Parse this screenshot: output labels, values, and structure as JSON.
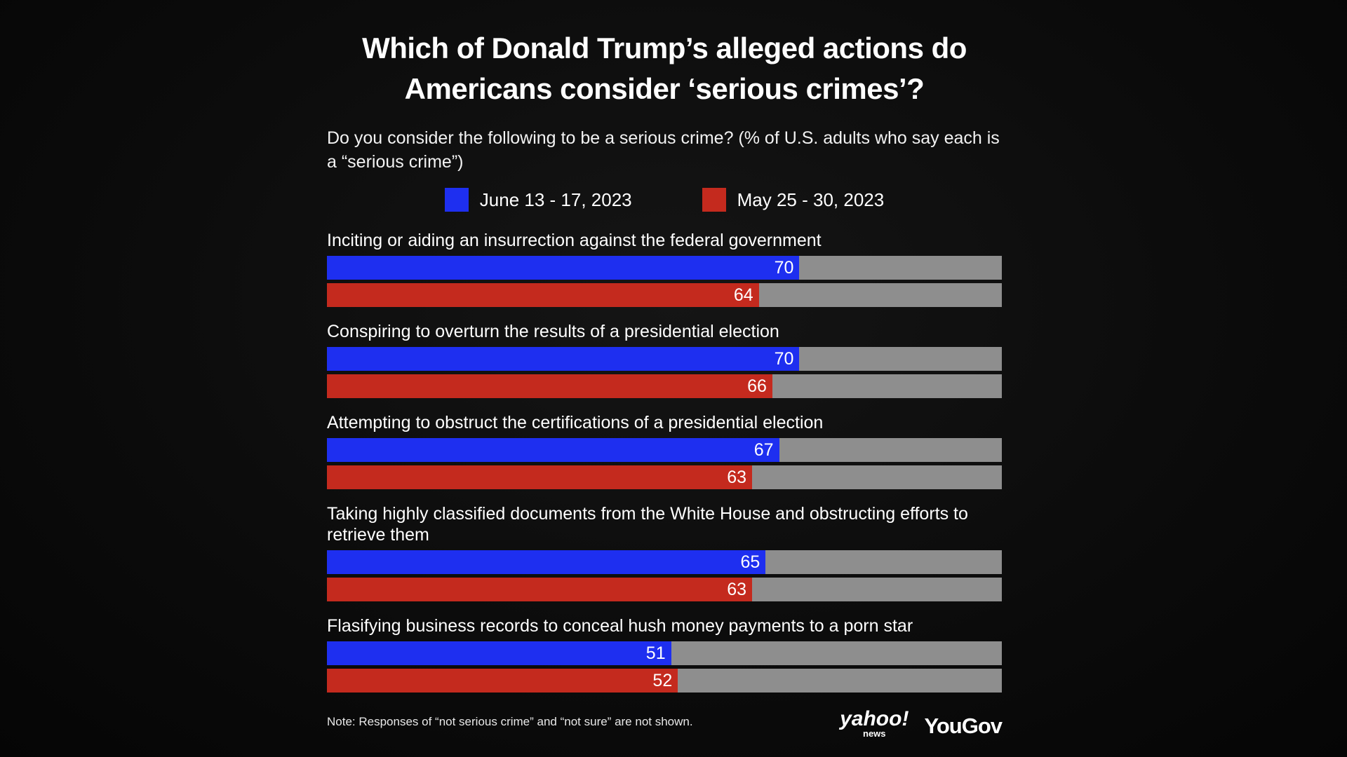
{
  "title": "Which of Donald Trump’s alleged actions do Americans consider ‘serious crimes’?",
  "subtitle": "Do you consider the following to be a serious crime? (% of U.S. adults who say each is a “serious crime”)",
  "note": "Note: Responses of “not serious crime” and “not sure” are not shown.",
  "logos": {
    "yahoo": "yahoo!",
    "yahoo_sub": "news",
    "yougov": "YouGov"
  },
  "colors": {
    "june": "#1e2ff0",
    "may": "#c42a1e",
    "track": "#8e8e8e"
  },
  "chart_data": {
    "type": "bar",
    "orientation": "horizontal",
    "xlim": [
      0,
      100
    ],
    "legend_position": "top-center",
    "categories": [
      "Inciting or aiding an insurrection against the federal government",
      "Conspiring to overturn the results of a presidential election",
      "Attempting to obstruct the certifications of a presidential election",
      "Taking highly classified documents from the White House and obstructing efforts to retrieve them",
      "Flasifying business records to conceal hush money payments to a porn star"
    ],
    "series": [
      {
        "name": "June 13 - 17, 2023",
        "color": "#1e2ff0",
        "values": [
          70,
          70,
          67,
          65,
          51
        ]
      },
      {
        "name": "May 25 - 30, 2023",
        "color": "#c42a1e",
        "values": [
          64,
          66,
          63,
          63,
          52
        ]
      }
    ]
  }
}
